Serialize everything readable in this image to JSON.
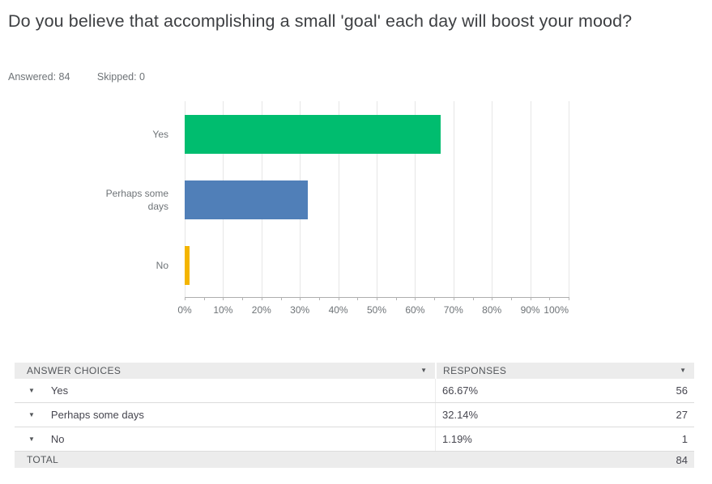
{
  "page": {
    "title": "Do you believe that accomplishing a small 'goal' each day will boost your mood?",
    "answered": "Answered: 84",
    "skipped": "Skipped: 0"
  },
  "chart_data": {
    "type": "bar",
    "orientation": "horizontal",
    "categories": [
      "Yes",
      "Perhaps some days",
      "No"
    ],
    "values": [
      66.67,
      32.14,
      1.19
    ],
    "bar_colors": [
      "#00bd6f",
      "#507fb8",
      "#f4b500"
    ],
    "xlabel": "",
    "ylabel": "",
    "xlim": [
      0,
      100
    ],
    "x_tick_labels": [
      "0%",
      "10%",
      "20%",
      "30%",
      "40%",
      "50%",
      "60%",
      "70%",
      "80%",
      "90%",
      "100%"
    ],
    "minor_tick_step_percent": 5,
    "grid": true,
    "legend": false
  },
  "table": {
    "header": {
      "answer_choices": "ANSWER CHOICES",
      "responses": "RESPONSES"
    },
    "rows": [
      {
        "label": "Yes",
        "percent": "66.67%",
        "count": "56"
      },
      {
        "label": "Perhaps some days",
        "percent": "32.14%",
        "count": "27"
      },
      {
        "label": "No",
        "percent": "1.19%",
        "count": "1"
      }
    ],
    "total_label": "TOTAL",
    "total_value": "84"
  },
  "icons": {
    "caret_down": "▼"
  }
}
